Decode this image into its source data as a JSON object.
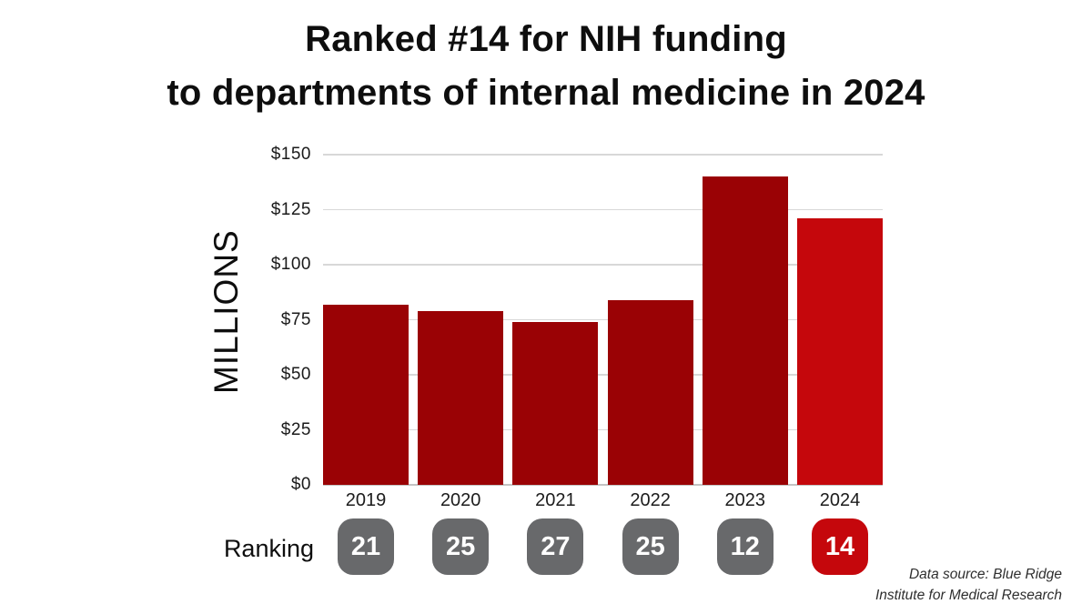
{
  "title": {
    "line1": "Ranked #14 for NIH funding",
    "line2": "to departments of internal medicine in 2024"
  },
  "chart_data": {
    "type": "bar",
    "categories": [
      "2019",
      "2020",
      "2021",
      "2022",
      "2023",
      "2024"
    ],
    "values": [
      82,
      79,
      74,
      84,
      140,
      121
    ],
    "title": "Ranked #14 for NIH funding to departments of internal medicine in 2024",
    "xlabel": "",
    "ylabel": "MILLIONS",
    "ylim": [
      0,
      150
    ],
    "yticks": [
      "$150",
      "$125",
      "$100",
      "$75",
      "$50",
      "$25",
      "$0"
    ],
    "ytick_values": [
      150,
      125,
      100,
      75,
      50,
      25,
      0
    ],
    "grid": true,
    "legend": "none",
    "bar_color": "#9a0205",
    "highlight_color": "#c5070c",
    "highlight_index": 5,
    "gridline_color": "#d8d8d8"
  },
  "ranking": {
    "label": "Ranking",
    "values": [
      "21",
      "25",
      "27",
      "25",
      "12",
      "14"
    ],
    "badge_color": "#68696b",
    "highlight_color": "#c5070c",
    "highlight_index": 5
  },
  "source": {
    "line1": "Data source: Blue Ridge",
    "line2": "Institute for Medical Research"
  }
}
